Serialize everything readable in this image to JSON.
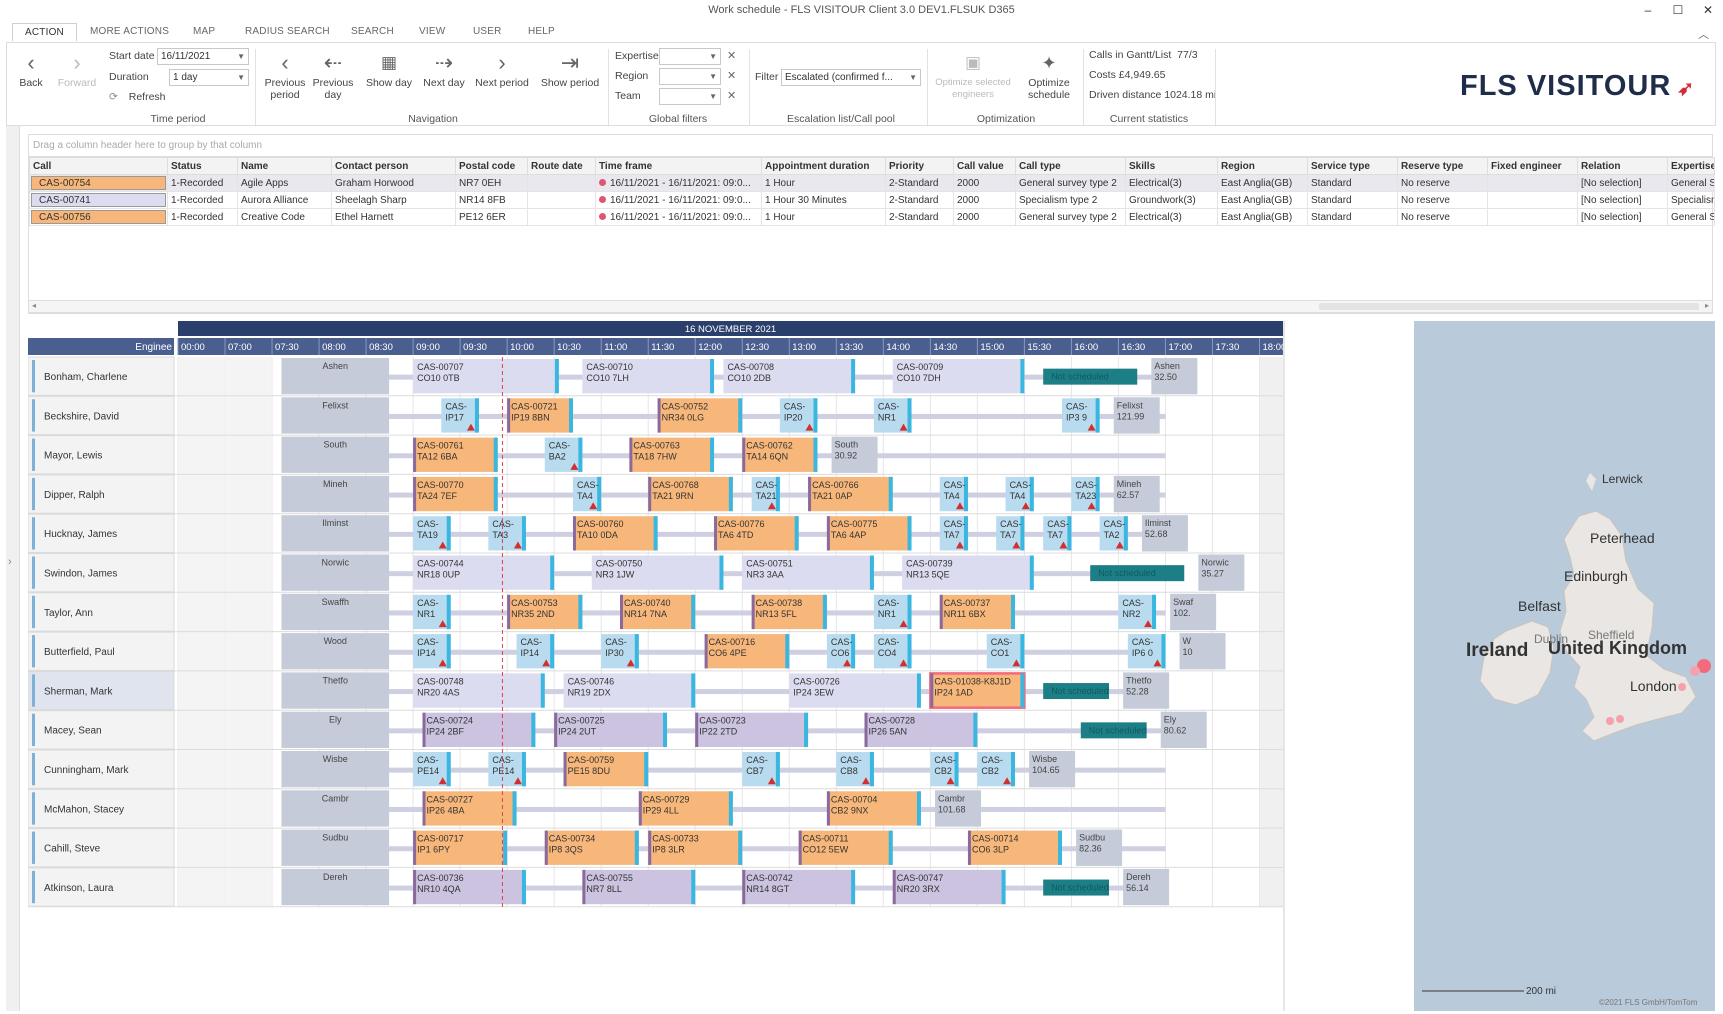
{
  "window": {
    "title": "Work schedule - FLS VISITOUR Client 3.0 DEV1.FLSUK D365"
  },
  "tabs": [
    "ACTION",
    "MORE ACTIONS",
    "MAP",
    "RADIUS SEARCH",
    "SEARCH",
    "VIEW",
    "USER",
    "HELP"
  ],
  "ribbon": {
    "back": "Back",
    "forward": "Forward",
    "start_date_label": "Start date",
    "start_date": "16/11/2021",
    "duration_label": "Duration",
    "duration": "1 day",
    "refresh": "Refresh",
    "time_period_group": "Time period",
    "previous_period": "Previous period",
    "previous_day": "Previous day",
    "show_day": "Show day",
    "next_day": "Next day",
    "next_period": "Next period",
    "show_period": "Show period",
    "navigation_group": "Navigation",
    "expertise_label": "Expertise",
    "region_label": "Region",
    "team_label": "Team",
    "global_filters_group": "Global filters",
    "filter_label": "Filter",
    "filter_value": "Escalated (confirmed f...",
    "escalation_group": "Escalation list/Call pool",
    "optimize_selected": "Optimize selected engineers",
    "optimize_schedule": "Optimize schedule",
    "optimization_group": "Optimization",
    "calls_label": "Calls in Gantt/List",
    "calls_value": "77/3",
    "costs": "Costs £4,949.65",
    "driven": "Driven distance 1024.18 mi",
    "stats_group": "Current statistics",
    "logo_text": "FLS VISITOUR"
  },
  "grid": {
    "group_hint": "Drag a column header here to group by that column",
    "columns": [
      "Call",
      "Status",
      "Name",
      "Contact person",
      "Postal code",
      "Route date",
      "Time frame",
      "Appointment duration",
      "Priority",
      "Call value",
      "Call type",
      "Skills",
      "Region",
      "Service type",
      "Reserve type",
      "Fixed engineer",
      "Relation",
      "Expertise"
    ],
    "rows": [
      [
        "CAS-00754",
        "1-Recorded",
        "Agile Apps",
        "Graham Horwood",
        "NR7 0EH",
        "",
        "16/11/2021 - 16/11/2021: 09:0...",
        "1 Hour",
        "2-Standard",
        "2000",
        "General survey type 2",
        "Electrical(3)",
        "East Anglia(GB)",
        "Standard",
        "No reserve",
        "",
        "[No selection]",
        "General S"
      ],
      [
        "CAS-00741",
        "1-Recorded",
        "Aurora Alliance",
        "Sheelagh Sharp",
        "NR14 8FB",
        "",
        "16/11/2021 - 16/11/2021: 09:0...",
        "1 Hour 30 Minutes",
        "2-Standard",
        "2000",
        "Specialism type 2",
        "Groundwork(3)",
        "East Anglia(GB)",
        "Standard",
        "No reserve",
        "",
        "[No selection]",
        "Specialism"
      ],
      [
        "CAS-00756",
        "1-Recorded",
        "Creative Code",
        "Ethel Harnett",
        "PE12 6ER",
        "",
        "16/11/2021 - 16/11/2021: 09:0...",
        "1 Hour",
        "2-Standard",
        "2000",
        "General survey type 2",
        "Electrical(3)",
        "East Anglia(GB)",
        "Standard",
        "No reserve",
        "",
        "[No selection]",
        "General S"
      ]
    ]
  },
  "gantt": {
    "date": "16 NOVEMBER 2021",
    "engineer_header": "Enginee",
    "times": [
      "00:00",
      "07:00",
      "07:30",
      "08:00",
      "08:30",
      "09:00",
      "09:30",
      "10:00",
      "10:30",
      "11:00",
      "11:30",
      "12:00",
      "12:30",
      "13:00",
      "13:30",
      "14:00",
      "14:30",
      "15:00",
      "15:30",
      "16:00",
      "16:30",
      "17:00",
      "17:30",
      "18:00"
    ],
    "rows": [
      {
        "name": "Bonham, Charlene",
        "start": "Ashen",
        "end": "Ashen|32.50",
        "bars": [
          [
            "CAS-00707|CO10 0TB",
            9.0,
            10.55,
            "l"
          ],
          [
            "CAS-00710|CO10 7LH",
            10.8,
            12.2,
            "l"
          ],
          [
            "CAS-00708|CO10 2DB",
            12.3,
            13.7,
            "l"
          ],
          [
            "CAS-00709|CO10 7DH",
            14.1,
            15.5,
            "l"
          ],
          [
            "Not scheduled",
            15.7,
            16.7,
            "t"
          ]
        ]
      },
      {
        "name": "Beckshire, David",
        "start": "Felixst",
        "end": "Felixst|121.99",
        "bars": [
          [
            "CAS-|IP17",
            9.3,
            9.7,
            "s"
          ],
          [
            "CAS-00721|IP19 8BN",
            10.0,
            10.7,
            "o"
          ],
          [
            "CAS-00752|NR34 0LG",
            11.6,
            12.5,
            "o"
          ],
          [
            "CAS-|IP20",
            12.9,
            13.3,
            "s"
          ],
          [
            "CAS-|NR1",
            13.9,
            14.3,
            "s"
          ],
          [
            "CAS-|IP3 9",
            15.9,
            16.3,
            "s"
          ]
        ]
      },
      {
        "name": "Mayor, Lewis",
        "start": "South",
        "end": "South|30.92",
        "bars": [
          [
            "CAS-00761|TA12 6BA",
            9.0,
            9.9,
            "o"
          ],
          [
            "CAS-|BA2",
            10.4,
            10.8,
            "s"
          ],
          [
            "CAS-00763|TA18 7HW",
            11.3,
            12.2,
            "o"
          ],
          [
            "CAS-00762|TA14 6QN",
            12.5,
            13.3,
            "o"
          ]
        ]
      },
      {
        "name": "Dipper, Ralph",
        "start": "Mineh",
        "end": "Mineh|62.57",
        "bars": [
          [
            "CAS-00770|TA24 7EF",
            9.0,
            9.9,
            "o"
          ],
          [
            "CAS-|TA4",
            10.7,
            11.0,
            "s"
          ],
          [
            "CAS-00768|TA21 9RN",
            11.5,
            12.4,
            "o"
          ],
          [
            "CAS-|TA21",
            12.6,
            12.9,
            "s"
          ],
          [
            "CAS-00766|TA21 0AP",
            13.2,
            14.1,
            "o"
          ],
          [
            "CAS-|TA4",
            14.6,
            14.9,
            "s"
          ],
          [
            "CAS-|TA4",
            15.3,
            15.6,
            "s"
          ],
          [
            "CAS-|TA23",
            16.0,
            16.3,
            "s"
          ]
        ]
      },
      {
        "name": "Hucknay, James",
        "start": "Ilminst",
        "end": "Ilminst|52.68",
        "bars": [
          [
            "CAS-|TA19",
            9.0,
            9.4,
            "s"
          ],
          [
            "CAS-|TA3",
            9.8,
            10.2,
            "s"
          ],
          [
            "CAS-00760|TA10 0DA",
            10.7,
            11.6,
            "o"
          ],
          [
            "CAS-00776|TA6 4TD",
            12.2,
            13.1,
            "o"
          ],
          [
            "CAS-00775|TA6 4AP",
            13.4,
            14.3,
            "o"
          ],
          [
            "CAS-|TA7",
            14.6,
            14.9,
            "s"
          ],
          [
            "CAS-|TA7",
            15.2,
            15.5,
            "s"
          ],
          [
            "CAS-|TA7",
            15.7,
            16.0,
            "s"
          ],
          [
            "CAS-|TA2",
            16.3,
            16.6,
            "s"
          ]
        ]
      },
      {
        "name": "Swindon, James",
        "start": "Norwic",
        "end": "Norwic|35.27",
        "bars": [
          [
            "CAS-00744|NR18 0UP",
            9.0,
            10.5,
            "l"
          ],
          [
            "CAS-00750|NR3 1JW",
            10.9,
            12.3,
            "l"
          ],
          [
            "CAS-00751|NR3 3AA",
            12.5,
            13.9,
            "l"
          ],
          [
            "CAS-00739|NR13 5QE",
            14.2,
            15.6,
            "l"
          ],
          [
            "Not scheduled",
            16.2,
            17.2,
            "t"
          ]
        ]
      },
      {
        "name": "Taylor, Ann",
        "start": "Swaffh",
        "end": "Swaf|102.",
        "bars": [
          [
            "CAS-|NR1",
            9.0,
            9.4,
            "s"
          ],
          [
            "CAS-00753|NR35 2ND",
            10.0,
            10.8,
            "o"
          ],
          [
            "CAS-00740|NR14 7NA",
            11.2,
            12.0,
            "o"
          ],
          [
            "CAS-00738|NR13 5FL",
            12.6,
            13.4,
            "o"
          ],
          [
            "CAS-|NR1",
            13.9,
            14.3,
            "s"
          ],
          [
            "CAS-00737|NR11 6BX",
            14.6,
            15.4,
            "o"
          ],
          [
            "CAS-|NR2",
            16.5,
            16.9,
            "s"
          ]
        ]
      },
      {
        "name": "Butterfield, Paul",
        "start": "Wood",
        "end": "W|10",
        "bars": [
          [
            "CAS-|IP14",
            9.0,
            9.4,
            "s"
          ],
          [
            "CAS-|IP14",
            10.1,
            10.5,
            "s"
          ],
          [
            "CAS-|IP30",
            11.0,
            11.4,
            "s"
          ],
          [
            "CAS-00716|CO6 4PE",
            12.1,
            13.0,
            "o"
          ],
          [
            "CAS-|CO6",
            13.4,
            13.7,
            "s"
          ],
          [
            "CAS-|CO4",
            13.9,
            14.3,
            "s"
          ],
          [
            "CAS-|CO1",
            15.1,
            15.5,
            "s"
          ],
          [
            "CAS-|IP6 0",
            16.6,
            17.0,
            "s"
          ]
        ]
      },
      {
        "name": "Sherman, Mark",
        "start": "Thetfo",
        "end": "Thetfo|52.28",
        "bars": [
          [
            "CAS-00748|NR20 4AS",
            9.0,
            10.4,
            "l"
          ],
          [
            "CAS-00746|NR19 2DX",
            10.6,
            12.0,
            "l"
          ],
          [
            "CAS-00726|IP24 3EW",
            13.0,
            14.4,
            "l"
          ],
          [
            "CAS-01038-K8J1D|IP24 1AD",
            14.5,
            15.5,
            "sel"
          ],
          [
            "Not scheduled",
            15.7,
            16.4,
            "t"
          ]
        ]
      },
      {
        "name": "Macey, Sean",
        "start": "Ely",
        "end": "Ely|80.62",
        "bars": [
          [
            "CAS-00724|IP24 2BF",
            9.1,
            10.3,
            "p"
          ],
          [
            "CAS-00725|IP24 2UT",
            10.5,
            11.7,
            "p"
          ],
          [
            "CAS-00723|IP22 2TD",
            12.0,
            13.2,
            "p"
          ],
          [
            "CAS-00728|IP26 5AN",
            13.8,
            15.0,
            "p"
          ],
          [
            "Not scheduled",
            16.1,
            16.8,
            "t"
          ]
        ]
      },
      {
        "name": "Cunningham, Mark",
        "start": "Wisbe",
        "end": "Wisbe|104.65",
        "bars": [
          [
            "CAS-|PE14",
            9.0,
            9.4,
            "s"
          ],
          [
            "CAS-|PE14",
            9.8,
            10.2,
            "s"
          ],
          [
            "CAS-00759|PE15 8DU",
            10.6,
            11.5,
            "o"
          ],
          [
            "CAS-|CB7",
            12.5,
            12.9,
            "s"
          ],
          [
            "CAS-|CB8",
            13.5,
            13.9,
            "s"
          ],
          [
            "CAS-|CB2",
            14.5,
            14.8,
            "s"
          ],
          [
            "CAS-|CB2",
            15.0,
            15.4,
            "s"
          ]
        ]
      },
      {
        "name": "McMahon, Stacey",
        "start": "Cambr",
        "end": "Cambr|101.68",
        "bars": [
          [
            "CAS-00727|IP26 4BA",
            9.1,
            10.1,
            "o"
          ],
          [
            "CAS-00729|IP29 4LL",
            11.4,
            12.4,
            "o"
          ],
          [
            "CAS-00704|CB2 9NX",
            13.4,
            14.4,
            "o"
          ]
        ]
      },
      {
        "name": "Cahill, Steve",
        "start": "Sudbu",
        "end": "Sudbu|82.36",
        "bars": [
          [
            "CAS-00717|IP1 6PY",
            9.0,
            10.0,
            "o"
          ],
          [
            "CAS-00734|IP8 3QS",
            10.4,
            11.4,
            "o"
          ],
          [
            "CAS-00733|IP8 3LR",
            11.5,
            12.5,
            "o"
          ],
          [
            "CAS-00711|CO12 5EW",
            13.1,
            14.1,
            "o"
          ],
          [
            "CAS-00714|CO6 3LP",
            14.9,
            15.9,
            "o"
          ]
        ]
      },
      {
        "name": "Atkinson, Laura",
        "start": "Dereh",
        "end": "Dereh|56.14",
        "bars": [
          [
            "CAS-00736|NR10 4QA",
            9.0,
            10.2,
            "p"
          ],
          [
            "CAS-00755|NR7 8LL",
            10.8,
            12.0,
            "p"
          ],
          [
            "CAS-00742|NR14 8GT",
            12.5,
            13.7,
            "p"
          ],
          [
            "CAS-00747|NR20 3RX",
            14.1,
            15.3,
            "p"
          ],
          [
            "Not scheduled",
            15.7,
            16.4,
            "t"
          ]
        ]
      }
    ]
  },
  "map": {
    "labels": [
      "Lerwick",
      "Peterhead",
      "Edinburgh",
      "Belfast",
      "Ireland",
      "United Kingdom",
      "Dublin",
      "Sheffield",
      "London"
    ],
    "scale": "200 mi",
    "copyright": "©2021 FLS GmbH/TomTom"
  },
  "colors": {
    "accent": "#2a3f6b",
    "orange": "#f8b77a",
    "lavender": "#dcdcf0",
    "purple": "#cbc3e0",
    "teal": "#1d7f86",
    "cyan": "#3ab7e0",
    "now": "#e04050",
    "selected": "#f26a7c"
  }
}
